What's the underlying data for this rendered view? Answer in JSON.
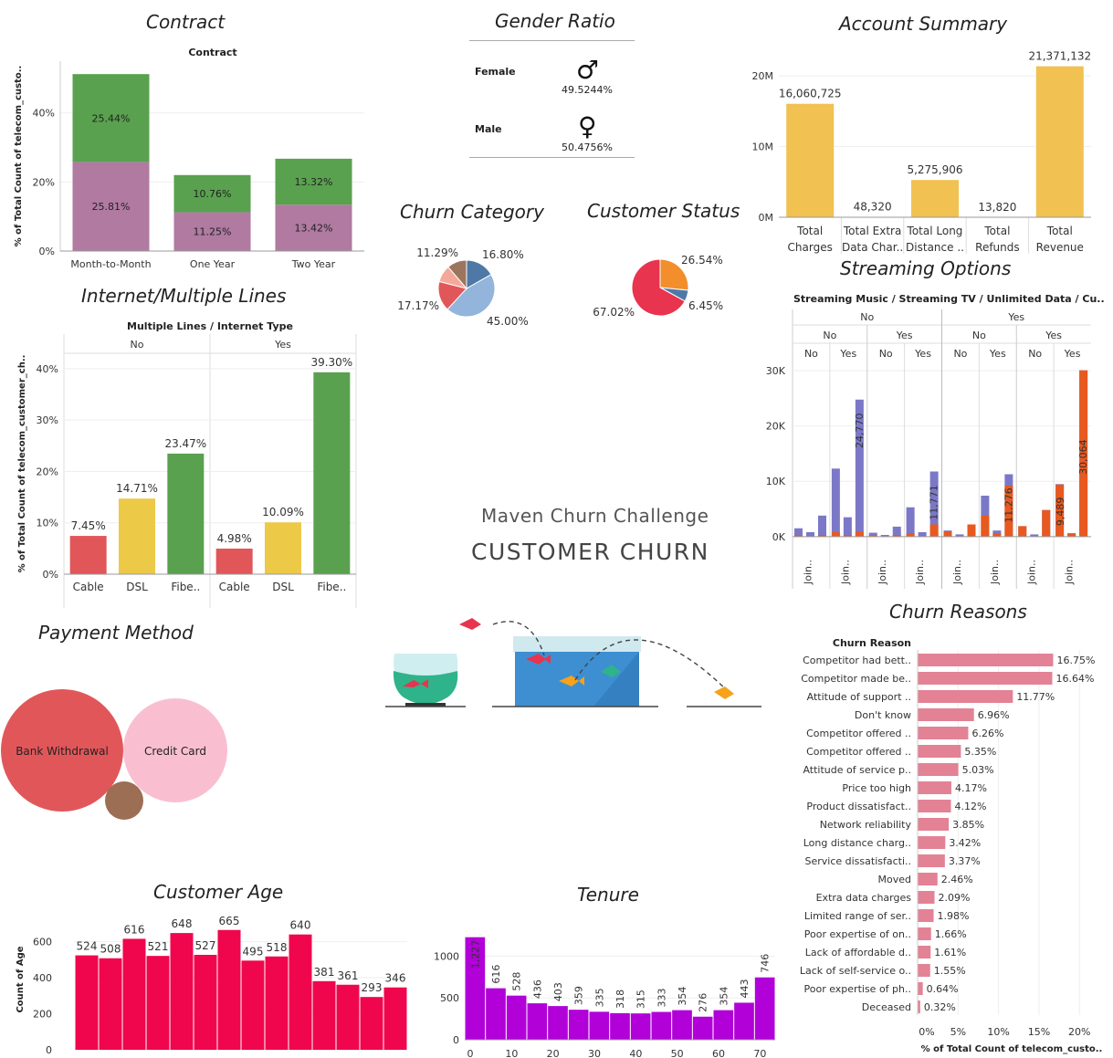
{
  "dashboard": {
    "subtitle": "Maven Churn Challenge",
    "title": "CUSTOMER CHURN"
  },
  "colors": {
    "green": "#59a14f",
    "purple": "#b07aa1",
    "red": "#e15759",
    "yellow": "#edc948",
    "gold": "#f1c151",
    "blue_violet": "#7b78c8",
    "orange": "#e8591f",
    "pink": "#e38295",
    "crimson": "#f0064d",
    "magenta": "#b100d8"
  },
  "gender": {
    "title": "Gender Ratio",
    "rows": [
      {
        "label": "Female",
        "symbol": "♂",
        "value": "49.5244%"
      },
      {
        "label": "Male",
        "symbol": "♀",
        "value": "50.4756%"
      }
    ]
  },
  "chart_data": [
    {
      "id": "contract",
      "type": "bar",
      "panel_title": "Contract",
      "title": "Contract",
      "ylabel": "% of Total Count of telecom_custo..",
      "ylim": [
        0,
        55
      ],
      "yticks": [
        "0%",
        "20%",
        "40%"
      ],
      "yticks_values": [
        0,
        20,
        40
      ],
      "categories": [
        "Month-to-Month",
        "One Year",
        "Two Year"
      ],
      "series": [
        {
          "values": [
            25.81,
            11.25,
            13.42
          ],
          "labels": [
            "25.81%",
            "11.25%",
            "13.42%"
          ],
          "color": "#b07aa1"
        },
        {
          "values": [
            25.44,
            10.76,
            13.32
          ],
          "labels": [
            "25.44%",
            "10.76%",
            "13.32%"
          ],
          "color": "#59a14f"
        }
      ],
      "stacked": true
    },
    {
      "id": "account",
      "type": "bar",
      "panel_title": "Account Summary",
      "categories": [
        "Total Charges",
        "Total Extra Data Char..",
        "Total Long Distance ..",
        "Total Refunds",
        "Total Revenue"
      ],
      "category_lines": [
        [
          "Total",
          "Charges"
        ],
        [
          "Total Extra",
          "Data Char.."
        ],
        [
          "Total Long",
          "Distance .."
        ],
        [
          "Total",
          "Refunds"
        ],
        [
          "Total",
          "Revenue"
        ]
      ],
      "values": [
        16060725,
        48320,
        5275906,
        13820,
        21371132
      ],
      "labels": [
        "16,060,725",
        "48,320",
        "5,275,906",
        "13,820",
        "21,371,132"
      ],
      "ylim": [
        0,
        23000000
      ],
      "yticks": [
        "0M",
        "10M",
        "20M"
      ],
      "yticks_values": [
        0,
        10000000,
        20000000
      ],
      "color": "#f1c151"
    },
    {
      "id": "churn_category",
      "type": "pie",
      "panel_title": "Churn Category",
      "slices": [
        {
          "value": 16.8,
          "label": "16.80%",
          "color": "#4e79a7"
        },
        {
          "value": 45.0,
          "label": "45.00%",
          "color": "#93b4db"
        },
        {
          "value": 17.17,
          "label": "17.17%",
          "color": "#e15759"
        },
        {
          "value": 9.74,
          "label": "",
          "color": "#f5a89a"
        },
        {
          "value": 11.29,
          "label": "11.29%",
          "color": "#9c755f"
        }
      ]
    },
    {
      "id": "customer_status",
      "type": "pie",
      "panel_title": "Customer Status",
      "slices": [
        {
          "value": 26.54,
          "label": "26.54%",
          "color": "#f28e2b"
        },
        {
          "value": 6.45,
          "label": "6.45%",
          "color": "#4e79a7"
        },
        {
          "value": 67.02,
          "label": "67.02%",
          "color": "#e8344e"
        }
      ]
    },
    {
      "id": "internet",
      "type": "bar",
      "panel_title": "Internet/Multiple Lines",
      "title": "Multiple Lines / Internet Type",
      "ylabel": "% of Total Count of telecom_customer_ch..",
      "ylim": [
        0,
        43
      ],
      "yticks": [
        "0%",
        "10%",
        "20%",
        "30%",
        "40%"
      ],
      "yticks_values": [
        0,
        10,
        20,
        30,
        40
      ],
      "groups": [
        {
          "name": "No",
          "categories": [
            "Cable",
            "DSL",
            "Fibe.."
          ],
          "values": [
            7.45,
            14.71,
            23.47
          ],
          "labels": [
            "7.45%",
            "14.71%",
            "23.47%"
          ]
        },
        {
          "name": "Yes",
          "categories": [
            "Cable",
            "DSL",
            "Fibe.."
          ],
          "values": [
            4.98,
            10.09,
            39.3
          ],
          "labels": [
            "4.98%",
            "10.09%",
            "39.30%"
          ]
        }
      ],
      "bar_colors": [
        "#e15759",
        "#edc948",
        "#59a14f"
      ]
    },
    {
      "id": "streaming",
      "type": "bar",
      "panel_title": "Streaming Options",
      "title": "Streaming Music / Streaming TV / Unlimited Data / Cu..",
      "ylim": [
        -3000,
        31000
      ],
      "yticks": [
        "0K",
        "10K",
        "20K",
        "30K"
      ],
      "yticks_values": [
        0,
        10000,
        20000,
        30000
      ],
      "level1": [
        "No",
        "Yes"
      ],
      "level2": [
        "No",
        "Yes",
        "No",
        "Yes"
      ],
      "level3": [
        "No",
        "Yes",
        "No",
        "Yes",
        "No",
        "Yes",
        "No",
        "Yes"
      ],
      "xtick": "Join..",
      "groups": [
        {
          "bars": [
            {
              "v": 1500,
              "o": 300
            },
            {
              "v": 800,
              "o": 0
            },
            {
              "v": 3800,
              "o": 300
            }
          ]
        },
        {
          "bars": [
            {
              "v": 12300,
              "o": 800
            },
            {
              "v": 3500,
              "o": 300
            },
            {
              "v": 24770,
              "o": 900
            }
          ],
          "label": "24,770"
        },
        {
          "bars": [
            {
              "v": 700,
              "o": 200
            },
            {
              "v": 300,
              "o": 0
            },
            {
              "v": 1800,
              "o": 300
            }
          ]
        },
        {
          "bars": [
            {
              "v": 5300,
              "o": 600
            },
            {
              "v": 800,
              "o": 0
            },
            {
              "v": 11771,
              "o": 2200
            }
          ],
          "label": "11,771"
        },
        {
          "bars": [
            {
              "v": 1100,
              "o": 900
            },
            {
              "v": 400,
              "o": 0
            },
            {
              "v": 2200,
              "o": 2200
            }
          ]
        },
        {
          "bars": [
            {
              "v": 7400,
              "o": 3800
            },
            {
              "v": 1100,
              "o": 600
            },
            {
              "v": 11276,
              "o": 9200
            }
          ],
          "label": "11,276"
        },
        {
          "bars": [
            {
              "v": 1800,
              "o": 1900
            },
            {
              "v": 400,
              "o": 0
            },
            {
              "v": 4800,
              "o": 4800
            }
          ]
        },
        {
          "bars": [
            {
              "v": 9489,
              "o": 9400
            },
            {
              "v": 600,
              "o": 600
            },
            {
              "v": 30064,
              "o": 30064
            }
          ],
          "label": "9,489",
          "label2": "30,064"
        }
      ],
      "colors": [
        "#7b78c8",
        "#e8591f"
      ]
    },
    {
      "id": "churn_reasons",
      "type": "bar",
      "orientation": "horizontal",
      "panel_title": "Churn Reasons",
      "title": "Churn Reason",
      "xlabel": "% of Total Count of telecom_custo..",
      "xlim": [
        0,
        22
      ],
      "xticks": [
        "0%",
        "5%",
        "10%",
        "15%",
        "20%"
      ],
      "xticks_values": [
        0,
        5,
        10,
        15,
        20
      ],
      "categories": [
        "Competitor had bett..",
        "Competitor made be..",
        "Attitude of support ..",
        "Don't know",
        "Competitor offered ..",
        "Competitor offered ..",
        "Attitude of service p..",
        "Price too high",
        "Product dissatisfact..",
        "Network reliability",
        "Long distance charg..",
        "Service dissatisfacti..",
        "Moved",
        "Extra data charges",
        "Limited range of ser..",
        "Poor expertise of on..",
        "Lack of affordable d..",
        "Lack of self-service o..",
        "Poor expertise of ph..",
        "Deceased"
      ],
      "values": [
        16.75,
        16.64,
        11.77,
        6.96,
        6.26,
        5.35,
        5.03,
        4.17,
        4.12,
        3.85,
        3.42,
        3.37,
        2.46,
        2.09,
        1.98,
        1.66,
        1.61,
        1.55,
        0.64,
        0.32
      ],
      "labels": [
        "16.75%",
        "16.64%",
        "11.77%",
        "6.96%",
        "6.26%",
        "5.35%",
        "5.03%",
        "4.17%",
        "4.12%",
        "3.85%",
        "3.42%",
        "3.37%",
        "2.46%",
        "2.09%",
        "1.98%",
        "1.66%",
        "1.61%",
        "1.55%",
        "0.64%",
        "0.32%"
      ],
      "color": "#e38295"
    },
    {
      "id": "payment",
      "type": "bubble",
      "panel_title": "Payment Method",
      "bubbles": [
        {
          "label": "Bank Withdrawal",
          "value": 1,
          "color": "#e15759"
        },
        {
          "label": "Credit Card",
          "value": 0.72,
          "color": "#f9bfd1"
        },
        {
          "label": "",
          "value": 0.1,
          "color": "#9c6e54"
        }
      ]
    },
    {
      "id": "age",
      "type": "bar",
      "panel_title": "Customer Age",
      "ylabel": "Count of Age",
      "ylim": [
        0,
        760
      ],
      "yticks": [
        "0",
        "200",
        "400",
        "600"
      ],
      "yticks_values": [
        0,
        200,
        400,
        600
      ],
      "values": [
        524,
        508,
        616,
        521,
        648,
        527,
        665,
        495,
        518,
        640,
        381,
        361,
        293,
        346
      ],
      "labels": [
        "524",
        "508",
        "616",
        "521",
        "648",
        "527",
        "665",
        "495",
        "518",
        "640",
        "381",
        "361",
        "293",
        "346"
      ],
      "color": "#f0064d"
    },
    {
      "id": "tenure",
      "type": "bar",
      "panel_title": "Tenure",
      "ylim": [
        0,
        1300
      ],
      "yticks": [
        "0",
        "500",
        "1000"
      ],
      "yticks_values": [
        0,
        500,
        1000
      ],
      "xticks": [
        "0",
        "10",
        "20",
        "30",
        "40",
        "50",
        "60",
        "70"
      ],
      "xticks_values": [
        0,
        10,
        20,
        30,
        40,
        50,
        60,
        70
      ],
      "bin_width": 5,
      "values": [
        1227,
        616,
        528,
        436,
        403,
        359,
        335,
        318,
        315,
        333,
        354,
        276,
        354,
        443,
        746
      ],
      "labels": [
        "1,227",
        "616",
        "528",
        "436",
        "403",
        "359",
        "335",
        "318",
        "315",
        "333",
        "354",
        "276",
        "354",
        "443",
        "746"
      ],
      "color": "#b100d8"
    }
  ]
}
